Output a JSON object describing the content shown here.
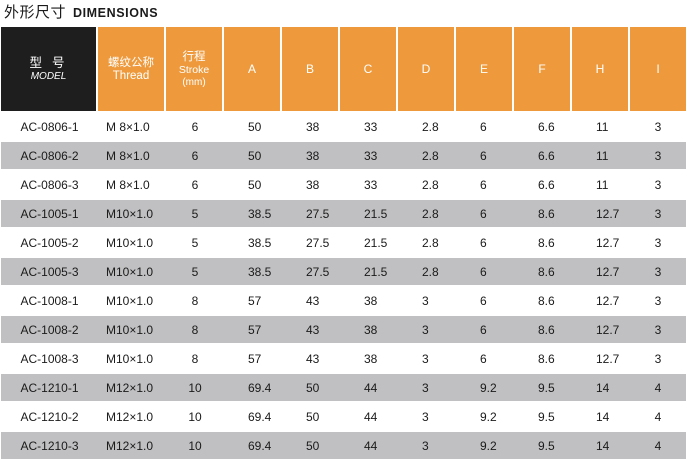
{
  "title": {
    "cn": "外形尺寸",
    "en": "DIMENSIONS"
  },
  "header": {
    "model": {
      "cn": "型 号",
      "en": "MODEL"
    },
    "thread": {
      "cn": "螺纹公称",
      "en": "Thread"
    },
    "stroke": {
      "cn": "行程",
      "en": "Stroke",
      "unit": "(mm)"
    },
    "dims": [
      "A",
      "B",
      "C",
      "D",
      "E",
      "F",
      "H",
      "I"
    ]
  },
  "rows": [
    {
      "model": "AC-0806-1",
      "thread": "M  8×1.0",
      "stroke": "6",
      "A": "50",
      "B": "38",
      "C": "33",
      "D": "2.8",
      "E": "6",
      "F": "6.6",
      "H": "11",
      "I": "3"
    },
    {
      "model": "AC-0806-2",
      "thread": "M  8×1.0",
      "stroke": "6",
      "A": "50",
      "B": "38",
      "C": "33",
      "D": "2.8",
      "E": "6",
      "F": "6.6",
      "H": "11",
      "I": "3"
    },
    {
      "model": "AC-0806-3",
      "thread": "M  8×1.0",
      "stroke": "6",
      "A": "50",
      "B": "38",
      "C": "33",
      "D": "2.8",
      "E": "6",
      "F": "6.6",
      "H": "11",
      "I": "3"
    },
    {
      "model": "AC-1005-1",
      "thread": "M10×1.0",
      "stroke": "5",
      "A": "38.5",
      "B": "27.5",
      "C": "21.5",
      "D": "2.8",
      "E": "6",
      "F": "8.6",
      "H": "12.7",
      "I": "3"
    },
    {
      "model": "AC-1005-2",
      "thread": "M10×1.0",
      "stroke": "5",
      "A": "38.5",
      "B": "27.5",
      "C": "21.5",
      "D": "2.8",
      "E": "6",
      "F": "8.6",
      "H": "12.7",
      "I": "3"
    },
    {
      "model": "AC-1005-3",
      "thread": "M10×1.0",
      "stroke": "5",
      "A": "38.5",
      "B": "27.5",
      "C": "21.5",
      "D": "2.8",
      "E": "6",
      "F": "8.6",
      "H": "12.7",
      "I": "3"
    },
    {
      "model": "AC-1008-1",
      "thread": "M10×1.0",
      "stroke": "8",
      "A": "57",
      "B": "43",
      "C": "38",
      "D": "3",
      "E": "6",
      "F": "8.6",
      "H": "12.7",
      "I": "3"
    },
    {
      "model": "AC-1008-2",
      "thread": "M10×1.0",
      "stroke": "8",
      "A": "57",
      "B": "43",
      "C": "38",
      "D": "3",
      "E": "6",
      "F": "8.6",
      "H": "12.7",
      "I": "3"
    },
    {
      "model": "AC-1008-3",
      "thread": "M10×1.0",
      "stroke": "8",
      "A": "57",
      "B": "43",
      "C": "38",
      "D": "3",
      "E": "6",
      "F": "8.6",
      "H": "12.7",
      "I": "3"
    },
    {
      "model": "AC-1210-1",
      "thread": "M12×1.0",
      "stroke": "10",
      "A": "69.4",
      "B": "50",
      "C": "44",
      "D": "3",
      "E": "9.2",
      "F": "9.5",
      "H": "14",
      "I": "4"
    },
    {
      "model": "AC-1210-2",
      "thread": "M12×1.0",
      "stroke": "10",
      "A": "69.4",
      "B": "50",
      "C": "44",
      "D": "3",
      "E": "9.2",
      "F": "9.5",
      "H": "14",
      "I": "4"
    },
    {
      "model": "AC-1210-3",
      "thread": "M12×1.0",
      "stroke": "10",
      "A": "69.4",
      "B": "50",
      "C": "44",
      "D": "3",
      "E": "9.2",
      "F": "9.5",
      "H": "14",
      "I": "4"
    }
  ],
  "colors": {
    "header_orange": "#ee9a3c",
    "header_dark": "#1e1e1e",
    "row_shade": "#c0c0c2",
    "row_plain": "#ffffff"
  }
}
